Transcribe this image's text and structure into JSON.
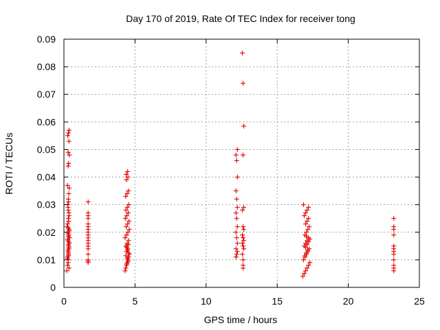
{
  "chart_data": {
    "type": "scatter",
    "title": "Day 170 of 2019, Rate Of TEC Index for receiver tong",
    "xlabel": "GPS time / hours",
    "ylabel": "ROTI / TECUs",
    "xlim": [
      0,
      25
    ],
    "ylim": [
      0,
      0.09
    ],
    "xticks": [
      "0",
      "5",
      "10",
      "15",
      "20",
      "25"
    ],
    "yticks": [
      "0",
      "0.01",
      "0.02",
      "0.03",
      "0.04",
      "0.05",
      "0.06",
      "0.07",
      "0.08",
      "0.09"
    ],
    "grid": true,
    "marker": "plus",
    "color": "#e00000",
    "series": [
      {
        "x": [
          0.2,
          0.25,
          0.3,
          0.32,
          0.35,
          0.38,
          0.4,
          0.28,
          0.22,
          0.33,
          0.36,
          0.3,
          0.27,
          0.31,
          0.34,
          0.37,
          0.25,
          0.29,
          0.33,
          0.38,
          0.3,
          0.35,
          0.27,
          0.32,
          0.36,
          0.24,
          0.3,
          0.34,
          0.28,
          0.33,
          0.37,
          0.26,
          0.31,
          0.35,
          0.29,
          0.32,
          0.3,
          0.36,
          0.27,
          0.33,
          0.31,
          0.28,
          0.35,
          0.3,
          0.34,
          0.26,
          0.32,
          0.29,
          0.36,
          0.31,
          1.7,
          1.7,
          1.7,
          1.7,
          1.7,
          1.7,
          1.7,
          1.7,
          1.7,
          1.7,
          1.7,
          1.7,
          1.7,
          1.7,
          1.7,
          1.7,
          1.7,
          1.7,
          4.3,
          4.35,
          4.4,
          4.45,
          4.5,
          4.55,
          4.6,
          4.4,
          4.5,
          4.35,
          4.45,
          4.55,
          4.3,
          4.4,
          4.5,
          4.6,
          4.38,
          4.48,
          4.58,
          4.32,
          4.42,
          4.52,
          4.36,
          4.46,
          4.56,
          4.34,
          4.44,
          4.54,
          4.4,
          4.5,
          4.38,
          4.48,
          4.42,
          4.52,
          4.45,
          4.35,
          4.55,
          4.47,
          4.41,
          4.53,
          12.1,
          12.15,
          12.2,
          12.1,
          12.2,
          12.15,
          12.1,
          12.2,
          12.15,
          12.1,
          12.2,
          12.15,
          12.1,
          12.2,
          12.15,
          12.1,
          12.2,
          12.6,
          12.6,
          12.6,
          12.55,
          12.65,
          12.6,
          12.55,
          12.65,
          12.6,
          12.55,
          12.65,
          12.6,
          12.55,
          12.65,
          12.6,
          12.6,
          12.55,
          12.65,
          16.8,
          16.9,
          17.0,
          17.1,
          17.2,
          17.3,
          16.85,
          16.95,
          17.05,
          17.15,
          17.25,
          16.9,
          17.0,
          17.1,
          17.2,
          16.95,
          17.05,
          17.15,
          17.25,
          17.0,
          17.1,
          17.2,
          16.9,
          17.0,
          17.1,
          17.2,
          16.85,
          16.95,
          17.05,
          17.15,
          17.0,
          17.1,
          17.2,
          17.3,
          17.05,
          23.2,
          23.2,
          23.2,
          23.2,
          23.2,
          23.2,
          23.2,
          23.2,
          23.2,
          23.2,
          23.2,
          23.2
        ],
        "y": [
          0.006,
          0.008,
          0.01,
          0.012,
          0.014,
          0.016,
          0.018,
          0.02,
          0.022,
          0.024,
          0.026,
          0.028,
          0.03,
          0.032,
          0.034,
          0.036,
          0.037,
          0.044,
          0.045,
          0.048,
          0.049,
          0.053,
          0.055,
          0.056,
          0.057,
          0.011,
          0.013,
          0.015,
          0.017,
          0.019,
          0.021,
          0.023,
          0.025,
          0.027,
          0.029,
          0.031,
          0.009,
          0.007,
          0.0105,
          0.0115,
          0.0125,
          0.0135,
          0.0145,
          0.0155,
          0.0165,
          0.0175,
          0.0185,
          0.0195,
          0.0205,
          0.0215,
          0.009,
          0.01,
          0.012,
          0.014,
          0.015,
          0.016,
          0.017,
          0.018,
          0.019,
          0.02,
          0.021,
          0.022,
          0.023,
          0.025,
          0.026,
          0.027,
          0.0095,
          0.031,
          0.006,
          0.007,
          0.008,
          0.009,
          0.01,
          0.011,
          0.012,
          0.013,
          0.014,
          0.015,
          0.016,
          0.017,
          0.018,
          0.019,
          0.02,
          0.021,
          0.022,
          0.023,
          0.024,
          0.025,
          0.026,
          0.027,
          0.028,
          0.029,
          0.03,
          0.033,
          0.034,
          0.035,
          0.039,
          0.04,
          0.041,
          0.042,
          0.0085,
          0.0095,
          0.0105,
          0.0115,
          0.0125,
          0.0135,
          0.0145,
          0.0155,
          0.011,
          0.012,
          0.013,
          0.014,
          0.016,
          0.018,
          0.02,
          0.022,
          0.025,
          0.027,
          0.029,
          0.032,
          0.035,
          0.04,
          0.046,
          0.048,
          0.05,
          0.007,
          0.008,
          0.01,
          0.012,
          0.014,
          0.015,
          0.016,
          0.017,
          0.018,
          0.019,
          0.021,
          0.022,
          0.028,
          0.029,
          0.048,
          0.074,
          0.085,
          0.0585,
          0.004,
          0.005,
          0.006,
          0.007,
          0.008,
          0.009,
          0.01,
          0.011,
          0.012,
          0.013,
          0.014,
          0.015,
          0.016,
          0.017,
          0.018,
          0.019,
          0.02,
          0.021,
          0.022,
          0.023,
          0.024,
          0.025,
          0.026,
          0.027,
          0.028,
          0.029,
          0.03,
          0.0115,
          0.0125,
          0.0135,
          0.0145,
          0.0155,
          0.0165,
          0.0175,
          0.0185,
          0.006,
          0.007,
          0.008,
          0.01,
          0.012,
          0.013,
          0.014,
          0.015,
          0.019,
          0.021,
          0.022,
          0.025
        ]
      }
    ]
  }
}
